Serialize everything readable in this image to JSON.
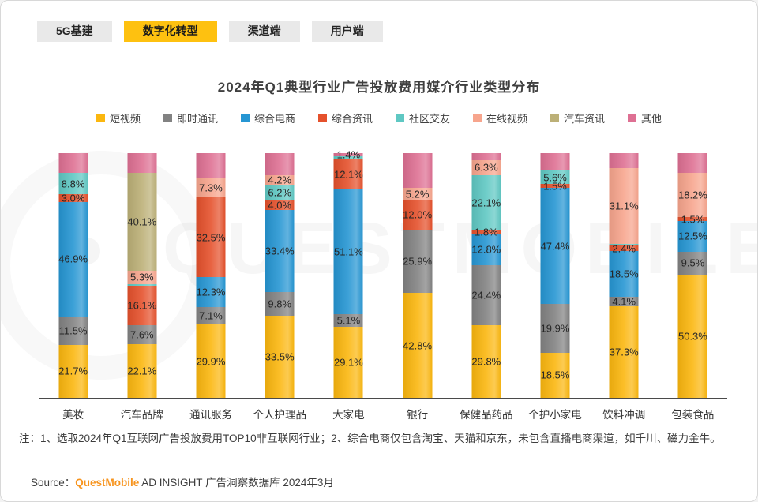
{
  "tabs": [
    {
      "label": "5G基建",
      "active": false
    },
    {
      "label": "数字化转型",
      "active": true
    },
    {
      "label": "渠道端",
      "active": false
    },
    {
      "label": "用户端",
      "active": false
    }
  ],
  "title": "2024年Q1典型行业广告投放费用媒介行业类型分布",
  "legend": [
    {
      "name": "短视频",
      "color": "#fbb70f"
    },
    {
      "name": "即时通讯",
      "color": "#828282"
    },
    {
      "name": "综合电商",
      "color": "#2696d3"
    },
    {
      "name": "综合资讯",
      "color": "#e5512c"
    },
    {
      "name": "社区交友",
      "color": "#5fc8c3"
    },
    {
      "name": "在线视频",
      "color": "#f7a58d"
    },
    {
      "name": "汽车资讯",
      "color": "#bcb077"
    },
    {
      "name": "其他",
      "color": "#de7093"
    }
  ],
  "chart_data": {
    "type": "bar",
    "subtype": "stacked-percent",
    "title": "2024年Q1典型行业广告投放费用媒介行业类型分布",
    "ylim": [
      0,
      100
    ],
    "grid": false,
    "legend_position": "top",
    "categories": [
      "美妆",
      "汽车品牌",
      "通讯服务",
      "个人护理品",
      "大家电",
      "银行",
      "保健品药品",
      "个护小家电",
      "饮料冲调",
      "包装食品"
    ],
    "colors": {
      "短视频": "#fbb70f",
      "即时通讯": "#828282",
      "综合电商": "#2696d3",
      "综合资讯": "#e5512c",
      "社区交友": "#5fc8c3",
      "在线视频": "#f7a58d",
      "汽车资讯": "#bcb077",
      "其他": "#de7093"
    },
    "bars": [
      {
        "category": "美妆",
        "segments": [
          {
            "series": "短视频",
            "value": 21.7,
            "label": "21.7%"
          },
          {
            "series": "即时通讯",
            "value": 11.5,
            "label": "11.5%"
          },
          {
            "series": "综合电商",
            "value": 46.9,
            "label": "46.9%"
          },
          {
            "series": "综合资讯",
            "value": 3.0,
            "label": "3.0%"
          },
          {
            "series": "社区交友",
            "value": 8.8,
            "label": "8.8%"
          },
          {
            "series": "其他",
            "value": 8.1,
            "label": null
          }
        ]
      },
      {
        "category": "汽车品牌",
        "segments": [
          {
            "series": "短视频",
            "value": 22.1,
            "label": "22.1%"
          },
          {
            "series": "即时通讯",
            "value": 7.6,
            "label": "7.6%"
          },
          {
            "series": "综合资讯",
            "value": 16.1,
            "label": "16.1%"
          },
          {
            "series": "社区交友",
            "value": 0.8,
            "label": null
          },
          {
            "series": "在线视频",
            "value": 5.3,
            "label": "5.3%"
          },
          {
            "series": "汽车资讯",
            "value": 40.1,
            "label": "40.1%"
          },
          {
            "series": "其他",
            "value": 8.0,
            "label": null
          }
        ]
      },
      {
        "category": "通讯服务",
        "segments": [
          {
            "series": "短视频",
            "value": 29.9,
            "label": "29.9%"
          },
          {
            "series": "即时通讯",
            "value": 7.1,
            "label": "7.1%"
          },
          {
            "series": "综合电商",
            "value": 12.3,
            "label": "12.3%"
          },
          {
            "series": "综合资讯",
            "value": 32.5,
            "label": "32.5%"
          },
          {
            "series": "社区交友",
            "value": 0.5,
            "label": null
          },
          {
            "series": "在线视频",
            "value": 7.3,
            "label": "7.3%"
          },
          {
            "series": "其他",
            "value": 10.4,
            "label": null
          }
        ]
      },
      {
        "category": "个人护理品",
        "segments": [
          {
            "series": "短视频",
            "value": 33.5,
            "label": "33.5%"
          },
          {
            "series": "即时通讯",
            "value": 9.8,
            "label": "9.8%"
          },
          {
            "series": "综合电商",
            "value": 33.4,
            "label": "33.4%"
          },
          {
            "series": "综合资讯",
            "value": 4.0,
            "label": "4.0%"
          },
          {
            "series": "社区交友",
            "value": 6.2,
            "label": "6.2%"
          },
          {
            "series": "在线视频",
            "value": 4.2,
            "label": "4.2%"
          },
          {
            "series": "其他",
            "value": 8.9,
            "label": null
          }
        ]
      },
      {
        "category": "大家电",
        "segments": [
          {
            "series": "短视频",
            "value": 29.1,
            "label": "29.1%"
          },
          {
            "series": "即时通讯",
            "value": 5.1,
            "label": "5.1%"
          },
          {
            "series": "综合电商",
            "value": 51.1,
            "label": "51.1%"
          },
          {
            "series": "综合资讯",
            "value": 12.1,
            "label": "12.1%"
          },
          {
            "series": "社区交友",
            "value": 1.2,
            "label": null
          },
          {
            "series": "其他",
            "value": 1.4,
            "label": "1.4%"
          }
        ]
      },
      {
        "category": "银行",
        "segments": [
          {
            "series": "短视频",
            "value": 42.8,
            "label": "42.8%"
          },
          {
            "series": "即时通讯",
            "value": 25.9,
            "label": "25.9%"
          },
          {
            "series": "综合资讯",
            "value": 12.0,
            "label": "12.0%"
          },
          {
            "series": "在线视频",
            "value": 5.2,
            "label": "5.2%"
          },
          {
            "series": "其他",
            "value": 14.1,
            "label": null
          }
        ]
      },
      {
        "category": "保健品药品",
        "segments": [
          {
            "series": "短视频",
            "value": 29.8,
            "label": "29.8%"
          },
          {
            "series": "即时通讯",
            "value": 24.4,
            "label": "24.4%"
          },
          {
            "series": "综合电商",
            "value": 12.8,
            "label": "12.8%"
          },
          {
            "series": "综合资讯",
            "value": 1.8,
            "label": "1.8%"
          },
          {
            "series": "社区交友",
            "value": 22.1,
            "label": "22.1%"
          },
          {
            "series": "在线视频",
            "value": 6.3,
            "label": "6.3%"
          },
          {
            "series": "其他",
            "value": 2.8,
            "label": null
          }
        ]
      },
      {
        "category": "个护小家电",
        "segments": [
          {
            "series": "短视频",
            "value": 18.5,
            "label": "18.5%"
          },
          {
            "series": "即时通讯",
            "value": 19.9,
            "label": "19.9%"
          },
          {
            "series": "综合电商",
            "value": 47.4,
            "label": "47.4%"
          },
          {
            "series": "综合资讯",
            "value": 1.5,
            "label": "1.5%"
          },
          {
            "series": "社区交友",
            "value": 5.6,
            "label": "5.6%"
          },
          {
            "series": "其他",
            "value": 7.1,
            "label": null
          }
        ]
      },
      {
        "category": "饮料冲调",
        "segments": [
          {
            "series": "短视频",
            "value": 37.3,
            "label": "37.3%"
          },
          {
            "series": "即时通讯",
            "value": 4.1,
            "label": "4.1%"
          },
          {
            "series": "综合电商",
            "value": 18.5,
            "label": "18.5%"
          },
          {
            "series": "综合资讯",
            "value": 2.4,
            "label": "2.4%"
          },
          {
            "series": "社区交友",
            "value": 0.5,
            "label": null
          },
          {
            "series": "在线视频",
            "value": 31.1,
            "label": "31.1%"
          },
          {
            "series": "其他",
            "value": 6.1,
            "label": null
          }
        ]
      },
      {
        "category": "包装食品",
        "segments": [
          {
            "series": "短视频",
            "value": 50.3,
            "label": "50.3%"
          },
          {
            "series": "即时通讯",
            "value": 9.5,
            "label": "9.5%"
          },
          {
            "series": "综合电商",
            "value": 12.5,
            "label": "12.5%"
          },
          {
            "series": "综合资讯",
            "value": 1.5,
            "label": "1.5%"
          },
          {
            "series": "在线视频",
            "value": 18.2,
            "label": "18.2%"
          },
          {
            "series": "其他",
            "value": 8.0,
            "label": null
          }
        ]
      }
    ]
  },
  "note": "注：1、选取2024年Q1互联网广告投放费用TOP10非互联网行业；2、综合电商仅包含淘宝、天猫和京东，未包含直播电商渠道，如千川、磁力金牛。",
  "source": {
    "prefix": "Source：",
    "brand": "QuestMobile",
    "suffix": " AD INSIGHT 广告洞察数据库 2024年3月"
  },
  "watermark": "QUESTMOBILE"
}
